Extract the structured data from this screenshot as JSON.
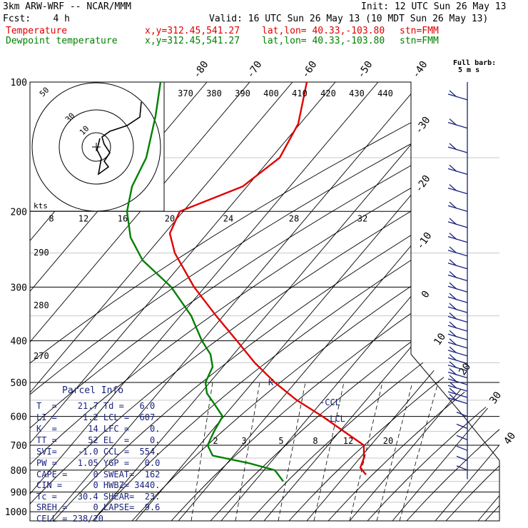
{
  "header": {
    "model": "3km ARW-WRF -- NCAR/MMM",
    "init": "Init: 12 UTC Sun 26 May 13",
    "fcst": "Fcst:    4 h",
    "valid": "Valid: 16 UTC Sun 26 May 13 (10 MDT Sun 26 May 13)",
    "temp_label": "Temperature",
    "dew_label": "Dewpoint temperature",
    "point": "x,y=312.45,541.27",
    "latlon": "lat,lon= 40.33,-103.80",
    "stn": "stn=FMM"
  },
  "colors": {
    "temperature": "#e00000",
    "dewpoint": "#008000",
    "wind": "#1a237e",
    "text": "#000000"
  },
  "barb_legend": {
    "title": "Full barb:",
    "value": "5 m s"
  },
  "hodograph_label": "kts",
  "hodograph_rings": [
    "10",
    "30",
    "50"
  ],
  "parcel_info": {
    "title": "Parcel Info",
    "rows": [
      "T  =    21.7 Td =   6.0",
      "LI =     1.2 LCL =  607.",
      "K  =      14 LFC =    0.",
      "TT =      52 EL  =    0.",
      "SVI=    -1.0 CCL =  554.",
      "PW =    1.05 YGP =   0.0",
      "CAPE =     0 SWEAT=  162",
      "CIN =      0 HWBZ= 3440.",
      "Tc =    30.4 SHEAR=  23.",
      "SREH =     0 LAPSE=  9.6",
      "CELL = 238/20"
    ]
  },
  "markers": {
    "ccl": "-CCL",
    "lcl": "-LCL",
    "k": "K"
  },
  "chart_data": {
    "type": "line",
    "title": "",
    "xlabel": "",
    "ylabel": "",
    "y_scale": "log",
    "y_ticks": [
      100,
      200,
      300,
      400,
      500,
      600,
      700,
      800,
      900,
      1000
    ],
    "top_x_labels": [
      "370",
      "380",
      "390",
      "400",
      "410",
      "420",
      "430",
      "440"
    ],
    "mid_x_labels": [
      "8",
      "12",
      "16",
      "20",
      "24",
      "28",
      "32"
    ],
    "theta_labels": [
      "290",
      "280",
      "270"
    ],
    "skew_labels_top": [
      "-80",
      "-70",
      "-60",
      "-50",
      "-40"
    ],
    "skew_labels_right": [
      "-30",
      "-20",
      "-10",
      "0",
      "10",
      "20",
      "30",
      "40"
    ],
    "mixing_labels": [
      "2",
      "3",
      "5",
      "8",
      "12",
      "20"
    ],
    "series": [
      {
        "name": "Temperature",
        "p": [
          100,
          125,
          150,
          175,
          200,
          225,
          250,
          300,
          350,
          400,
          450,
          500,
          550,
          600,
          650,
          700,
          750,
          790,
          820
        ],
        "x": [
          430,
          418,
          392,
          340,
          252,
          238,
          245,
          272,
          303,
          332,
          357,
          385,
          416,
          452,
          482,
          510,
          510,
          505,
          513
        ]
      },
      {
        "name": "Dewpoint temperature",
        "p": [
          100,
          120,
          150,
          175,
          200,
          230,
          260,
          300,
          350,
          400,
          430,
          460,
          500,
          530,
          560,
          600,
          650,
          700,
          740,
          770,
          800,
          820,
          850
        ],
        "x": [
          225,
          218,
          205,
          185,
          178,
          183,
          200,
          240,
          268,
          283,
          295,
          298,
          288,
          290,
          300,
          312,
          300,
          291,
          298,
          348,
          385,
          390,
          397
        ]
      }
    ]
  }
}
